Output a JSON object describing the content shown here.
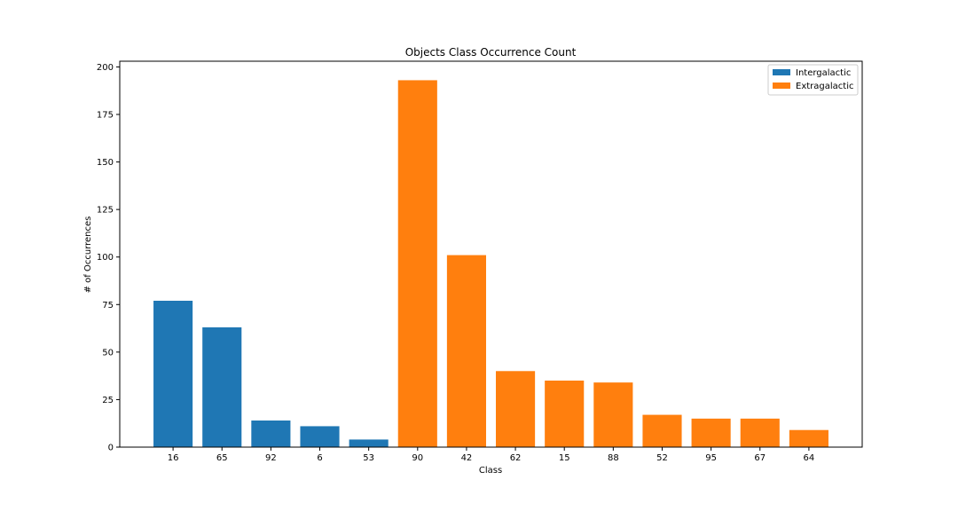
{
  "chart_data": {
    "type": "bar",
    "title": "Objects Class Occurrence Count",
    "xlabel": "Class",
    "ylabel": "# of Occurrences",
    "ylim": [
      0,
      203
    ],
    "yticks": [
      0,
      25,
      50,
      75,
      100,
      125,
      150,
      175,
      200
    ],
    "grid": false,
    "legend_position": "top-right",
    "series": [
      {
        "name": "Intergalactic",
        "color": "#1f77b4",
        "categories": [
          "16",
          "65",
          "92",
          "6",
          "53"
        ],
        "values": [
          77,
          63,
          14,
          11,
          4
        ]
      },
      {
        "name": "Extragalactic",
        "color": "#ff7f0e",
        "categories": [
          "90",
          "42",
          "62",
          "15",
          "88",
          "52",
          "95",
          "67",
          "64"
        ],
        "values": [
          193,
          101,
          40,
          35,
          34,
          17,
          15,
          15,
          9
        ]
      }
    ]
  }
}
